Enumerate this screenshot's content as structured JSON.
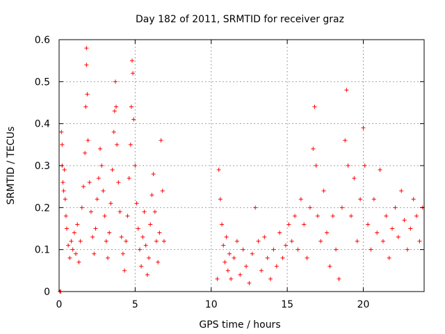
{
  "chart_data": {
    "type": "scatter",
    "title": "Day 182 of 2011, SRMTID for receiver graz",
    "xlabel": "GPS time / hours",
    "ylabel": "SRMTID / TECUs",
    "xlim": [
      0,
      24
    ],
    "ylim": [
      0,
      0.6
    ],
    "xticks": [
      0,
      5,
      10,
      15,
      20
    ],
    "xtick_labels": [
      "0",
      "5",
      "10",
      "15",
      "20"
    ],
    "yticks": [
      0,
      0.1,
      0.2,
      0.3,
      0.4,
      0.5,
      0.6
    ],
    "ytick_labels": [
      "0",
      "0.1",
      "0.2",
      "0.3",
      "0.4",
      "0.5",
      "0.6"
    ],
    "grid": true,
    "marker": "plus",
    "color": "#ff0000",
    "series": [
      {
        "name": "SRMTID",
        "points": [
          [
            0.05,
            0.0
          ],
          [
            0.1,
            0.0
          ],
          [
            0.15,
            0.38
          ],
          [
            0.2,
            0.35
          ],
          [
            0.2,
            0.3
          ],
          [
            0.25,
            0.26
          ],
          [
            0.3,
            0.24
          ],
          [
            0.35,
            0.29
          ],
          [
            0.4,
            0.22
          ],
          [
            0.45,
            0.18
          ],
          [
            0.5,
            0.15
          ],
          [
            0.6,
            0.11
          ],
          [
            0.7,
            0.08
          ],
          [
            0.8,
            0.12
          ],
          [
            0.9,
            0.1
          ],
          [
            1.0,
            0.14
          ],
          [
            1.1,
            0.09
          ],
          [
            1.2,
            0.16
          ],
          [
            1.3,
            0.07
          ],
          [
            1.4,
            0.12
          ],
          [
            1.5,
            0.2
          ],
          [
            1.6,
            0.25
          ],
          [
            1.7,
            0.33
          ],
          [
            1.75,
            0.44
          ],
          [
            1.8,
            0.58
          ],
          [
            1.8,
            0.54
          ],
          [
            1.85,
            0.47
          ],
          [
            1.9,
            0.36
          ],
          [
            2.0,
            0.26
          ],
          [
            2.1,
            0.19
          ],
          [
            2.2,
            0.13
          ],
          [
            2.3,
            0.09
          ],
          [
            2.4,
            0.15
          ],
          [
            2.5,
            0.22
          ],
          [
            2.6,
            0.27
          ],
          [
            2.7,
            0.34
          ],
          [
            2.8,
            0.3
          ],
          [
            2.9,
            0.24
          ],
          [
            3.0,
            0.18
          ],
          [
            3.1,
            0.12
          ],
          [
            3.2,
            0.08
          ],
          [
            3.3,
            0.14
          ],
          [
            3.4,
            0.21
          ],
          [
            3.5,
            0.29
          ],
          [
            3.6,
            0.38
          ],
          [
            3.65,
            0.43
          ],
          [
            3.7,
            0.5
          ],
          [
            3.75,
            0.44
          ],
          [
            3.8,
            0.35
          ],
          [
            3.9,
            0.26
          ],
          [
            4.0,
            0.19
          ],
          [
            4.1,
            0.13
          ],
          [
            4.2,
            0.09
          ],
          [
            4.3,
            0.05
          ],
          [
            4.4,
            0.12
          ],
          [
            4.5,
            0.18
          ],
          [
            4.6,
            0.27
          ],
          [
            4.7,
            0.35
          ],
          [
            4.75,
            0.44
          ],
          [
            4.8,
            0.55
          ],
          [
            4.85,
            0.52
          ],
          [
            4.9,
            0.41
          ],
          [
            5.0,
            0.3
          ],
          [
            5.1,
            0.21
          ],
          [
            5.2,
            0.15
          ],
          [
            5.3,
            0.1
          ],
          [
            5.4,
            0.06
          ],
          [
            5.5,
            0.13
          ],
          [
            5.6,
            0.19
          ],
          [
            5.7,
            0.11
          ],
          [
            5.8,
            0.04
          ],
          [
            5.9,
            0.08
          ],
          [
            6.0,
            0.16
          ],
          [
            6.1,
            0.23
          ],
          [
            6.2,
            0.28
          ],
          [
            6.3,
            0.19
          ],
          [
            6.4,
            0.12
          ],
          [
            6.5,
            0.07
          ],
          [
            6.6,
            0.14
          ],
          [
            6.7,
            0.36
          ],
          [
            6.8,
            0.24
          ],
          [
            6.9,
            0.12
          ],
          [
            10.4,
            0.03
          ],
          [
            10.5,
            0.29
          ],
          [
            10.6,
            0.22
          ],
          [
            10.7,
            0.16
          ],
          [
            10.8,
            0.11
          ],
          [
            10.9,
            0.07
          ],
          [
            11.0,
            0.13
          ],
          [
            11.1,
            0.05
          ],
          [
            11.2,
            0.09
          ],
          [
            11.3,
            0.03
          ],
          [
            11.5,
            0.08
          ],
          [
            11.7,
            0.12
          ],
          [
            11.9,
            0.04
          ],
          [
            12.1,
            0.1
          ],
          [
            12.3,
            0.06
          ],
          [
            12.5,
            0.02
          ],
          [
            12.7,
            0.09
          ],
          [
            12.9,
            0.2
          ],
          [
            13.1,
            0.12
          ],
          [
            13.3,
            0.05
          ],
          [
            13.5,
            0.13
          ],
          [
            13.7,
            0.08
          ],
          [
            13.9,
            0.03
          ],
          [
            14.1,
            0.1
          ],
          [
            14.3,
            0.06
          ],
          [
            14.5,
            0.14
          ],
          [
            14.7,
            0.08
          ],
          [
            14.9,
            0.11
          ],
          [
            15.1,
            0.16
          ],
          [
            15.3,
            0.12
          ],
          [
            15.5,
            0.18
          ],
          [
            15.7,
            0.1
          ],
          [
            15.9,
            0.22
          ],
          [
            16.1,
            0.16
          ],
          [
            16.3,
            0.08
          ],
          [
            16.5,
            0.2
          ],
          [
            16.7,
            0.34
          ],
          [
            16.8,
            0.44
          ],
          [
            16.9,
            0.3
          ],
          [
            17.0,
            0.18
          ],
          [
            17.2,
            0.12
          ],
          [
            17.4,
            0.24
          ],
          [
            17.6,
            0.14
          ],
          [
            17.8,
            0.06
          ],
          [
            18.0,
            0.18
          ],
          [
            18.2,
            0.1
          ],
          [
            18.4,
            0.03
          ],
          [
            18.6,
            0.2
          ],
          [
            18.8,
            0.36
          ],
          [
            18.9,
            0.48
          ],
          [
            19.0,
            0.3
          ],
          [
            19.2,
            0.18
          ],
          [
            19.4,
            0.27
          ],
          [
            19.6,
            0.12
          ],
          [
            19.8,
            0.22
          ],
          [
            20.0,
            0.39
          ],
          [
            20.1,
            0.3
          ],
          [
            20.3,
            0.16
          ],
          [
            20.5,
            0.1
          ],
          [
            20.7,
            0.22
          ],
          [
            20.9,
            0.14
          ],
          [
            21.1,
            0.29
          ],
          [
            21.3,
            0.12
          ],
          [
            21.5,
            0.18
          ],
          [
            21.7,
            0.08
          ],
          [
            21.9,
            0.15
          ],
          [
            22.1,
            0.2
          ],
          [
            22.3,
            0.13
          ],
          [
            22.5,
            0.24
          ],
          [
            22.7,
            0.17
          ],
          [
            22.9,
            0.1
          ],
          [
            23.1,
            0.15
          ],
          [
            23.3,
            0.22
          ],
          [
            23.5,
            0.18
          ],
          [
            23.7,
            0.12
          ],
          [
            23.9,
            0.2
          ]
        ]
      }
    ]
  }
}
